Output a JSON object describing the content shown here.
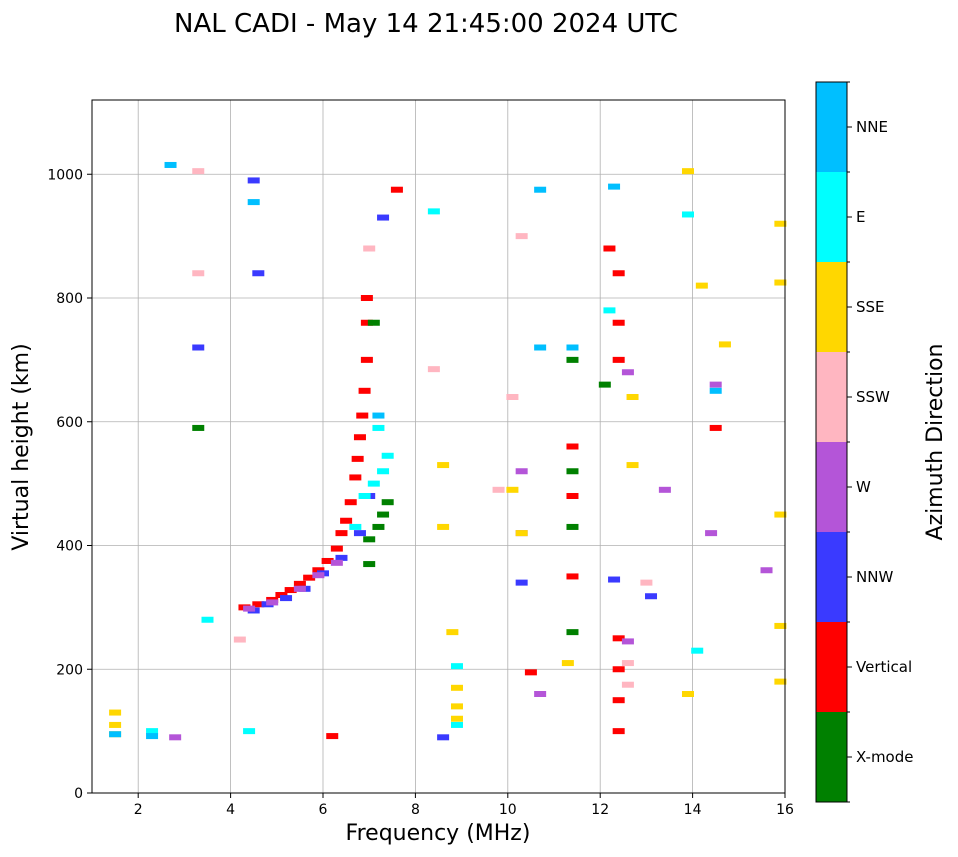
{
  "chart_data": {
    "type": "scatter",
    "title": "NAL CADI - May 14 21:45:00 2024 UTC",
    "xlabel": "Frequency (MHz)",
    "ylabel": "Virtual height (km)",
    "xlim": [
      1,
      16
    ],
    "ylim": [
      0,
      1120
    ],
    "xticks": [
      2,
      4,
      6,
      8,
      10,
      12,
      14,
      16
    ],
    "yticks": [
      0,
      200,
      400,
      600,
      800,
      1000
    ],
    "grid": true,
    "colorbar": {
      "label": "Azimuth Direction",
      "categories": [
        {
          "name": "X-mode",
          "color": "#008000"
        },
        {
          "name": "Vertical",
          "color": "#ff0000"
        },
        {
          "name": "NNW",
          "color": "#3a3aff"
        },
        {
          "name": "W",
          "color": "#b455d8"
        },
        {
          "name": "SSW",
          "color": "#ffb6c1"
        },
        {
          "name": "SSE",
          "color": "#ffd700"
        },
        {
          "name": "E",
          "color": "#00ffff"
        },
        {
          "name": "NNE",
          "color": "#00bfff"
        }
      ]
    },
    "series": [
      {
        "name": "Vertical",
        "points": [
          [
            4.3,
            300
          ],
          [
            4.6,
            305
          ],
          [
            4.9,
            312
          ],
          [
            5.1,
            320
          ],
          [
            5.3,
            328
          ],
          [
            5.5,
            338
          ],
          [
            5.7,
            348
          ],
          [
            5.9,
            360
          ],
          [
            6.1,
            375
          ],
          [
            6.3,
            395
          ],
          [
            6.4,
            420
          ],
          [
            6.5,
            440
          ],
          [
            6.6,
            470
          ],
          [
            6.7,
            510
          ],
          [
            6.75,
            540
          ],
          [
            6.8,
            575
          ],
          [
            6.85,
            610
          ],
          [
            6.9,
            650
          ],
          [
            6.95,
            700
          ],
          [
            6.95,
            760
          ],
          [
            6.95,
            800
          ],
          [
            7.6,
            975
          ],
          [
            12.2,
            880
          ],
          [
            12.4,
            840
          ],
          [
            12.4,
            760
          ],
          [
            12.4,
            700
          ],
          [
            11.4,
            560
          ],
          [
            11.4,
            480
          ],
          [
            11.4,
            350
          ],
          [
            12.4,
            250
          ],
          [
            12.4,
            200
          ],
          [
            12.4,
            150
          ],
          [
            12.4,
            100
          ],
          [
            6.2,
            92
          ],
          [
            10.5,
            195
          ],
          [
            14.5,
            590
          ]
        ]
      },
      {
        "name": "X-mode",
        "points": [
          [
            7.0,
            410
          ],
          [
            7.2,
            430
          ],
          [
            7.3,
            450
          ],
          [
            7.4,
            470
          ],
          [
            7.0,
            370
          ],
          [
            7.1,
            760
          ],
          [
            11.4,
            700
          ],
          [
            11.4,
            520
          ],
          [
            11.4,
            430
          ],
          [
            11.4,
            260
          ],
          [
            3.3,
            590
          ],
          [
            12.1,
            660
          ]
        ]
      },
      {
        "name": "NNW",
        "points": [
          [
            4.5,
            295
          ],
          [
            4.8,
            305
          ],
          [
            5.2,
            315
          ],
          [
            5.6,
            330
          ],
          [
            6.0,
            355
          ],
          [
            6.4,
            380
          ],
          [
            6.8,
            420
          ],
          [
            7.0,
            480
          ],
          [
            10.3,
            340
          ],
          [
            12.3,
            345
          ],
          [
            13.1,
            318
          ],
          [
            3.3,
            720
          ],
          [
            4.6,
            840
          ],
          [
            4.5,
            990
          ],
          [
            8.6,
            90
          ],
          [
            7.3,
            930
          ]
        ]
      },
      {
        "name": "W",
        "points": [
          [
            4.4,
            298
          ],
          [
            4.9,
            308
          ],
          [
            5.5,
            330
          ],
          [
            5.9,
            352
          ],
          [
            6.3,
            372
          ],
          [
            10.3,
            520
          ],
          [
            10.3,
            420
          ],
          [
            13.4,
            490
          ],
          [
            14.4,
            420
          ],
          [
            14.5,
            660
          ],
          [
            12.6,
            245
          ],
          [
            12.6,
            680
          ],
          [
            15.6,
            360
          ],
          [
            10.7,
            160
          ],
          [
            2.8,
            90
          ]
        ]
      },
      {
        "name": "SSW",
        "points": [
          [
            3.3,
            1005
          ],
          [
            3.3,
            840
          ],
          [
            10.3,
            900
          ],
          [
            12.6,
            175
          ],
          [
            12.6,
            210
          ],
          [
            7.0,
            880
          ],
          [
            8.4,
            685
          ],
          [
            9.8,
            490
          ],
          [
            10.1,
            640
          ],
          [
            4.2,
            248
          ],
          [
            13.0,
            340
          ]
        ]
      },
      {
        "name": "SSE",
        "points": [
          [
            1.5,
            130
          ],
          [
            1.5,
            110
          ],
          [
            1.5,
            95
          ],
          [
            8.9,
            170
          ],
          [
            8.9,
            140
          ],
          [
            8.9,
            120
          ],
          [
            8.8,
            260
          ],
          [
            8.6,
            430
          ],
          [
            8.6,
            530
          ],
          [
            12.7,
            530
          ],
          [
            12.7,
            640
          ],
          [
            13.9,
            1005
          ],
          [
            14.2,
            820
          ],
          [
            15.9,
            920
          ],
          [
            15.9,
            825
          ],
          [
            15.9,
            450
          ],
          [
            15.9,
            270
          ],
          [
            15.9,
            180
          ],
          [
            13.9,
            160
          ],
          [
            14.7,
            725
          ],
          [
            10.3,
            420
          ],
          [
            10.1,
            490
          ],
          [
            11.3,
            210
          ]
        ]
      },
      {
        "name": "E",
        "points": [
          [
            7.1,
            500
          ],
          [
            7.3,
            520
          ],
          [
            7.4,
            545
          ],
          [
            7.2,
            590
          ],
          [
            6.9,
            480
          ],
          [
            6.7,
            430
          ],
          [
            8.9,
            205
          ],
          [
            8.9,
            110
          ],
          [
            4.4,
            100
          ],
          [
            2.3,
            100
          ],
          [
            12.2,
            780
          ],
          [
            13.9,
            935
          ],
          [
            8.4,
            940
          ],
          [
            14.1,
            230
          ],
          [
            3.5,
            280
          ]
        ]
      },
      {
        "name": "NNE",
        "points": [
          [
            7.2,
            610
          ],
          [
            12.3,
            980
          ],
          [
            10.7,
            975
          ],
          [
            11.4,
            720
          ],
          [
            14.5,
            650
          ],
          [
            1.5,
            95
          ],
          [
            2.3,
            92
          ],
          [
            4.5,
            955
          ],
          [
            2.7,
            1015
          ],
          [
            10.7,
            720
          ]
        ]
      }
    ]
  }
}
